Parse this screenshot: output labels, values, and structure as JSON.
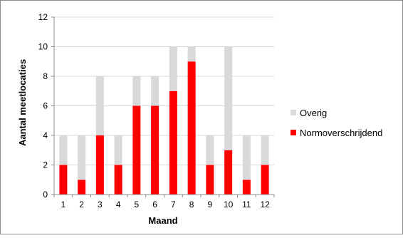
{
  "chart_data": {
    "type": "bar",
    "stacked": true,
    "categories": [
      "1",
      "2",
      "3",
      "4",
      "5",
      "6",
      "7",
      "8",
      "9",
      "10",
      "11",
      "12"
    ],
    "series": [
      {
        "name": "Normoverschrijdend",
        "color": "#ff0000",
        "values": [
          2,
          1,
          4,
          2,
          6,
          6,
          7,
          9,
          2,
          3,
          1,
          2
        ]
      },
      {
        "name": "Overig",
        "color": "#d9d9d9",
        "values": [
          2,
          3,
          4,
          2,
          2,
          2,
          3,
          1,
          2,
          7,
          3,
          2
        ]
      }
    ],
    "xlabel": "Maand",
    "ylabel": "Aantal meetlocaties",
    "ylim": [
      0,
      12
    ],
    "yticks": [
      0,
      2,
      4,
      6,
      8,
      10,
      12
    ],
    "grid": true,
    "legend": {
      "position": "right",
      "order": [
        "Overig",
        "Normoverschrijdend"
      ]
    }
  }
}
